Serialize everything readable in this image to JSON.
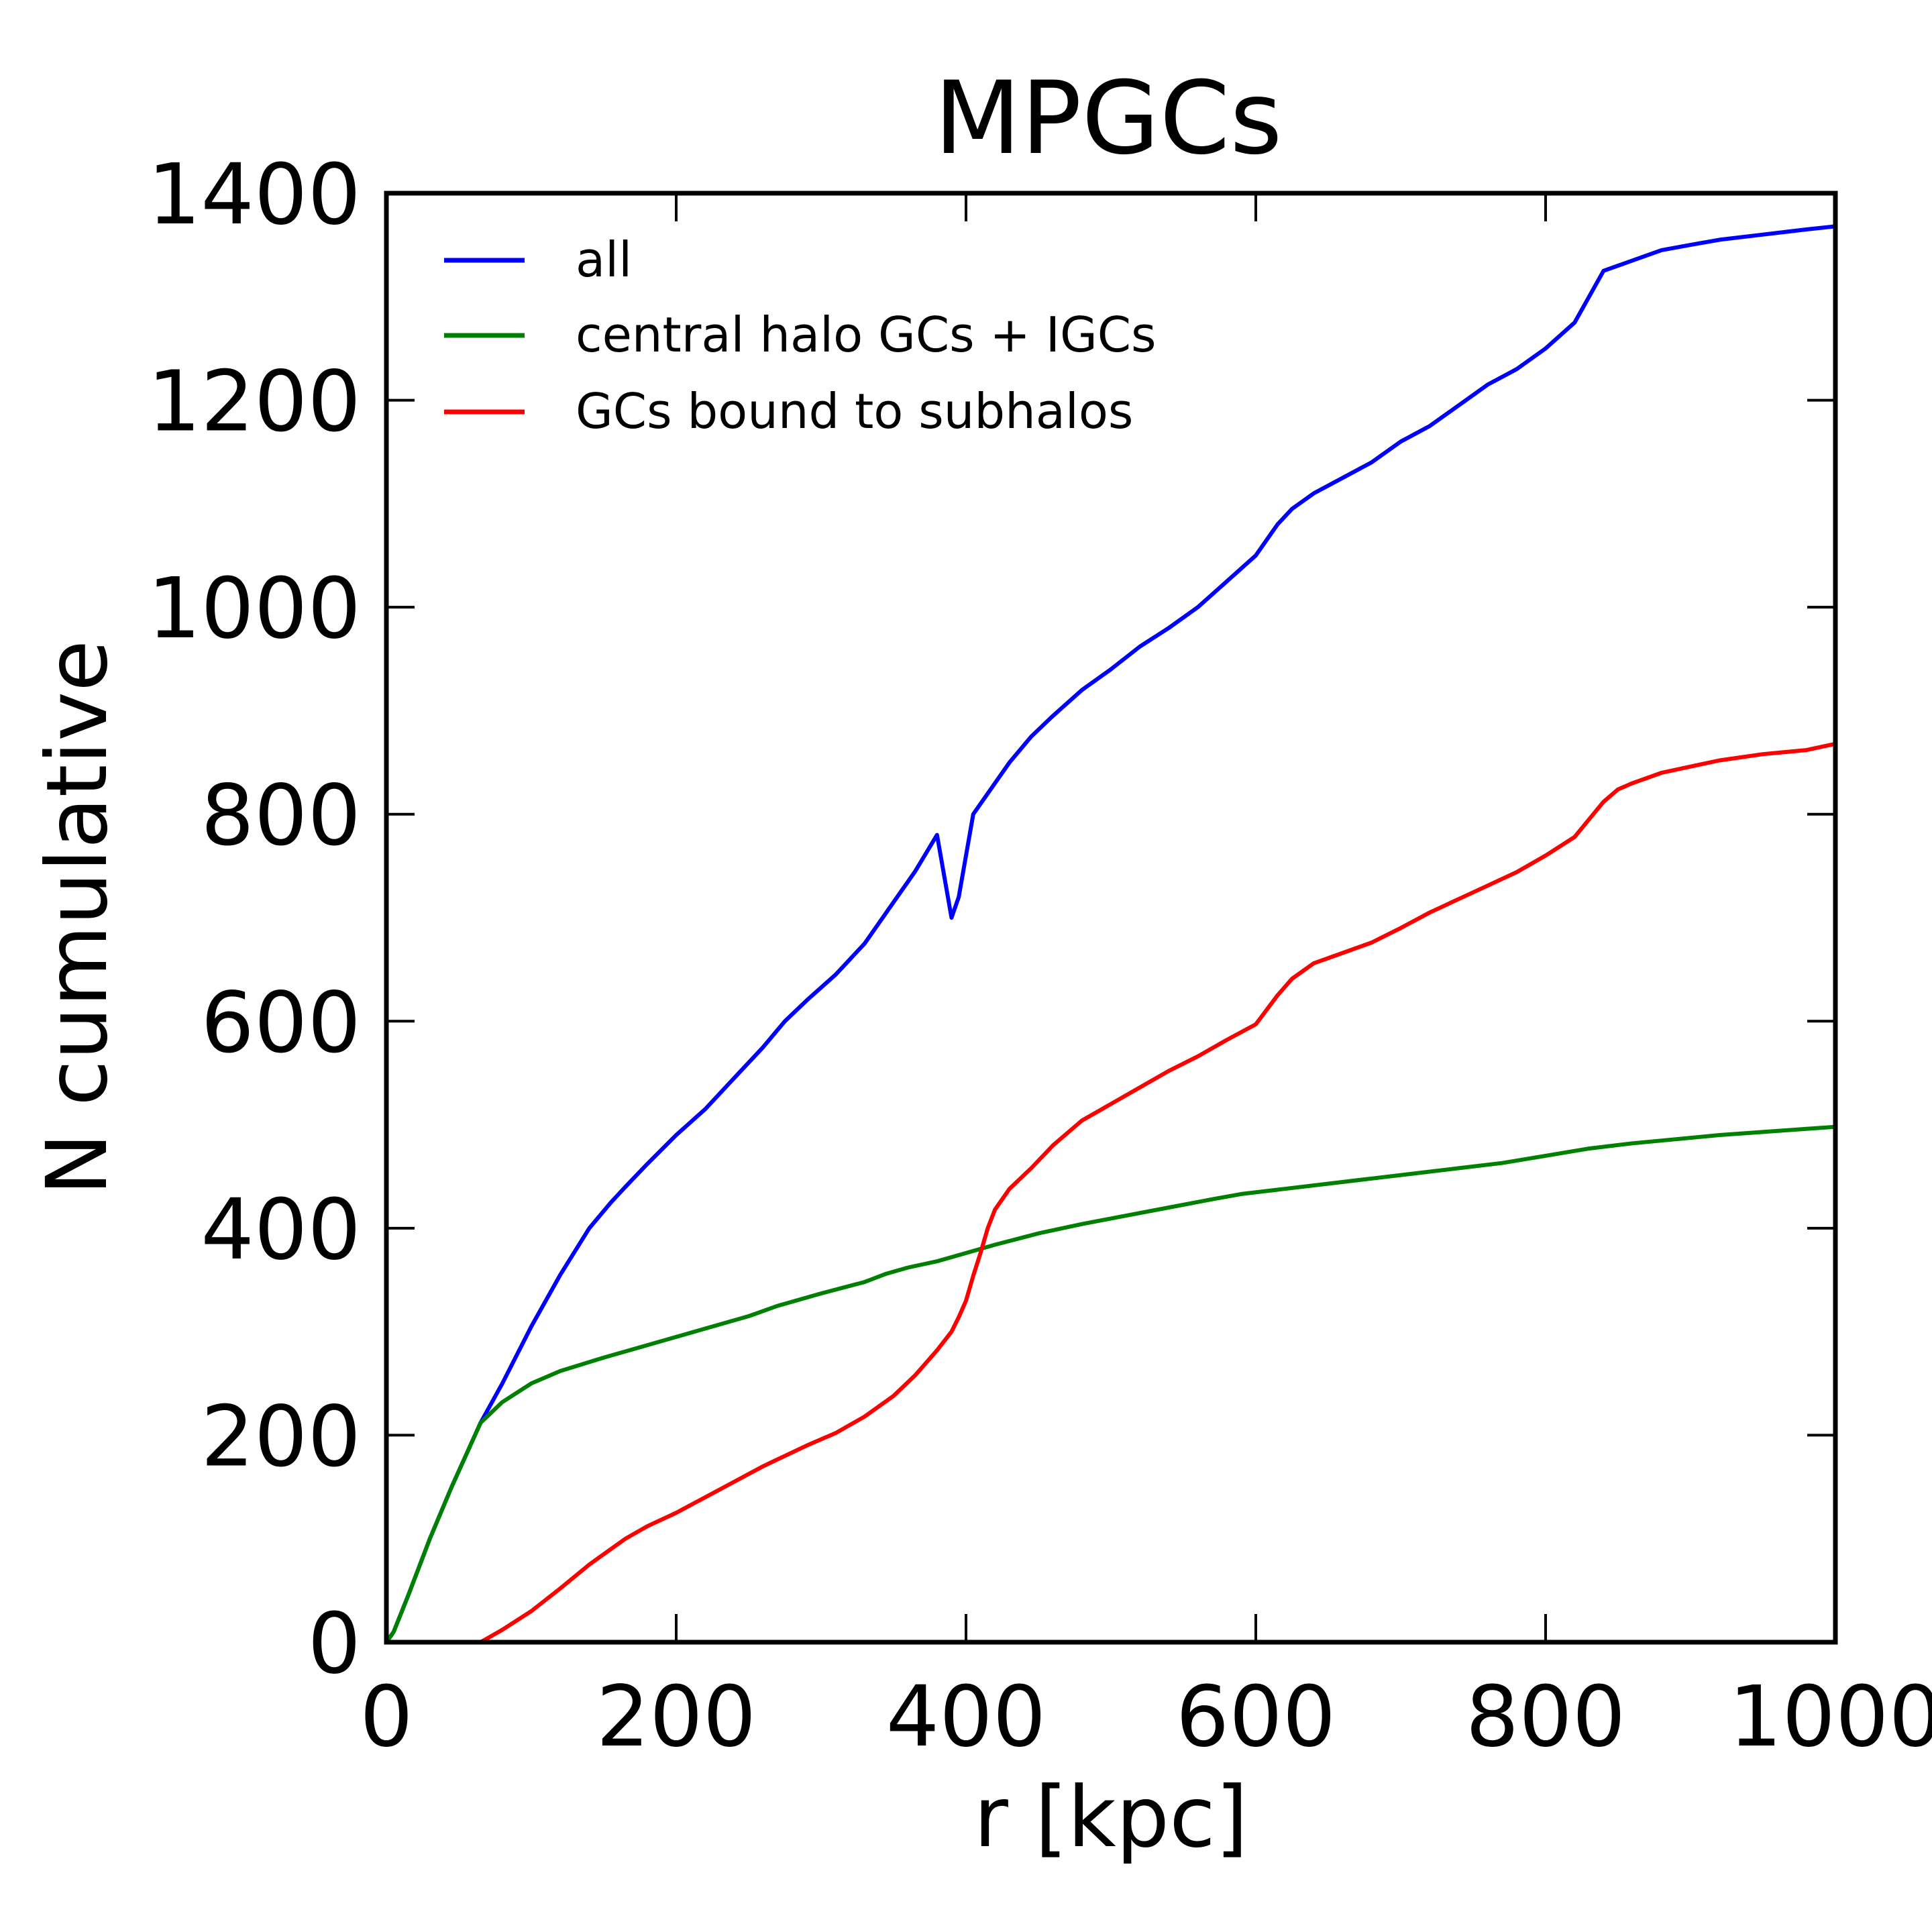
{
  "chart_data": {
    "type": "line",
    "title": "MPGCs",
    "xlabel": "r [kpc]",
    "ylabel": "N cumulative",
    "xlim": [
      0,
      1000
    ],
    "ylim": [
      0,
      1400
    ],
    "xticks": [
      0,
      200,
      400,
      600,
      800,
      1000
    ],
    "yticks": [
      0,
      200,
      400,
      600,
      800,
      1000,
      1200,
      1400
    ],
    "xtick_labels": [
      "0",
      "200",
      "400",
      "600",
      "800",
      "1000"
    ],
    "ytick_labels": [
      "0",
      "200",
      "400",
      "600",
      "800",
      "1000",
      "1200",
      "1400"
    ],
    "grid": false,
    "legend_position": "upper-left",
    "series": [
      {
        "name": "all",
        "color": "#0000ff",
        "x": [
          0,
          5,
          15,
          30,
          45,
          65,
          80,
          100,
          120,
          140,
          155,
          165,
          180,
          200,
          220,
          240,
          260,
          275,
          290,
          310,
          330,
          350,
          365,
          380,
          390,
          395,
          400,
          405,
          415,
          430,
          445,
          460,
          480,
          500,
          520,
          540,
          560,
          580,
          600,
          615,
          625,
          640,
          660,
          680,
          700,
          720,
          740,
          760,
          780,
          800,
          820,
          830,
          840,
          850,
          860,
          880,
          900,
          920,
          950,
          980,
          1000
        ],
        "y": [
          0,
          10,
          45,
          100,
          150,
          212,
          250,
          305,
          355,
          400,
          425,
          440,
          462,
          490,
          515,
          545,
          575,
          600,
          620,
          645,
          675,
          715,
          745,
          780,
          700,
          720,
          760,
          800,
          820,
          850,
          875,
          895,
          920,
          940,
          962,
          980,
          1000,
          1025,
          1050,
          1080,
          1095,
          1110,
          1125,
          1140,
          1160,
          1175,
          1195,
          1215,
          1230,
          1250,
          1275,
          1300,
          1325,
          1330,
          1335,
          1345,
          1350,
          1355,
          1360,
          1365,
          1368
        ]
      },
      {
        "name": "central halo GCs + IGCs",
        "color": "#008000",
        "x": [
          0,
          5,
          15,
          30,
          45,
          65,
          80,
          100,
          120,
          150,
          180,
          200,
          220,
          250,
          270,
          300,
          330,
          345,
          360,
          380,
          400,
          420,
          450,
          480,
          510,
          540,
          570,
          590,
          620,
          650,
          680,
          710,
          740,
          770,
          800,
          830,
          860,
          890,
          920,
          950,
          980,
          1000
        ],
        "y": [
          0,
          10,
          45,
          100,
          150,
          212,
          232,
          250,
          262,
          275,
          287,
          295,
          303,
          315,
          325,
          337,
          348,
          356,
          362,
          368,
          376,
          384,
          395,
          404,
          412,
          420,
          428,
          433,
          438,
          443,
          448,
          453,
          458,
          463,
          470,
          477,
          482,
          486,
          490,
          493,
          496,
          498
        ]
      },
      {
        "name": "GCs bound to subhalos",
        "color": "#ff0000",
        "x": [
          65,
          80,
          100,
          120,
          140,
          155,
          165,
          180,
          200,
          220,
          240,
          260,
          275,
          290,
          310,
          330,
          350,
          365,
          380,
          390,
          395,
          400,
          405,
          410,
          415,
          420,
          430,
          445,
          460,
          480,
          500,
          520,
          540,
          560,
          580,
          600,
          615,
          625,
          640,
          660,
          680,
          700,
          720,
          740,
          760,
          780,
          800,
          820,
          830,
          840,
          850,
          860,
          880,
          900,
          920,
          950,
          980,
          1000
        ],
        "y": [
          0,
          12,
          30,
          52,
          75,
          90,
          100,
          112,
          125,
          140,
          155,
          170,
          180,
          190,
          202,
          218,
          238,
          258,
          282,
          300,
          314,
          330,
          354,
          376,
          400,
          418,
          438,
          458,
          480,
          504,
          520,
          536,
          552,
          566,
          582,
          597,
          625,
          641,
          656,
          666,
          676,
          690,
          705,
          718,
          731,
          744,
          760,
          778,
          795,
          812,
          824,
          830,
          840,
          846,
          852,
          858,
          862,
          868
        ]
      }
    ]
  }
}
